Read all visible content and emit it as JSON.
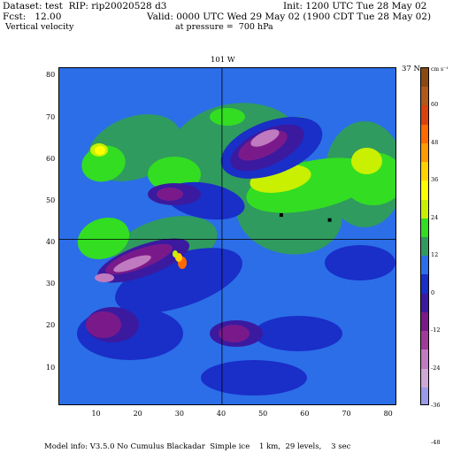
{
  "header": {
    "dataset": "Dataset: test  RIP: rip20020528 d3",
    "init": "Init: 1200 UTC Tue 28 May 02",
    "fcst": "Fcst:   12.00",
    "valid": "Valid: 0000 UTC Wed 29 May 02 (1900 CDT Tue 28 May 02)",
    "field": "Vertical velocity",
    "pressure": "at pressure =  700 hPa"
  },
  "map": {
    "meridian_label": "101 W",
    "parallel_label": "37 N",
    "meridian_grid_x": 40,
    "parallel_grid_y": 41,
    "grid_x_range": [
      1,
      82
    ],
    "grid_y_range": [
      1,
      82
    ]
  },
  "axes": {
    "x_ticks": [
      "10",
      "20",
      "30",
      "40",
      "50",
      "60",
      "70",
      "80"
    ],
    "y_ticks": [
      "80",
      "70",
      "60",
      "50",
      "40",
      "30",
      "20",
      "10"
    ]
  },
  "colorbar": {
    "units": "cm s⁻¹",
    "labels": [
      "60",
      "48",
      "36",
      "24",
      "12",
      "0",
      "-12",
      "-24",
      "-36",
      "-48"
    ],
    "colors": [
      "#8a4a12",
      "#b0591a",
      "#d9420a",
      "#ff6a00",
      "#ff9a00",
      "#ffd200",
      "#ffff00",
      "#c8f000",
      "#33dd22",
      "#2f9b5f",
      "#2b6ee8",
      "#1a2ec8",
      "#3b1aa0",
      "#7a1a8a",
      "#a03a9a",
      "#c07ac0",
      "#d0a8d8",
      "#9a9ae8"
    ]
  },
  "footer": {
    "model_info": "Model info: V3.5.0 No Cumulus Blackadar  Simple ice    1 km,  29 levels,    3 sec"
  }
}
